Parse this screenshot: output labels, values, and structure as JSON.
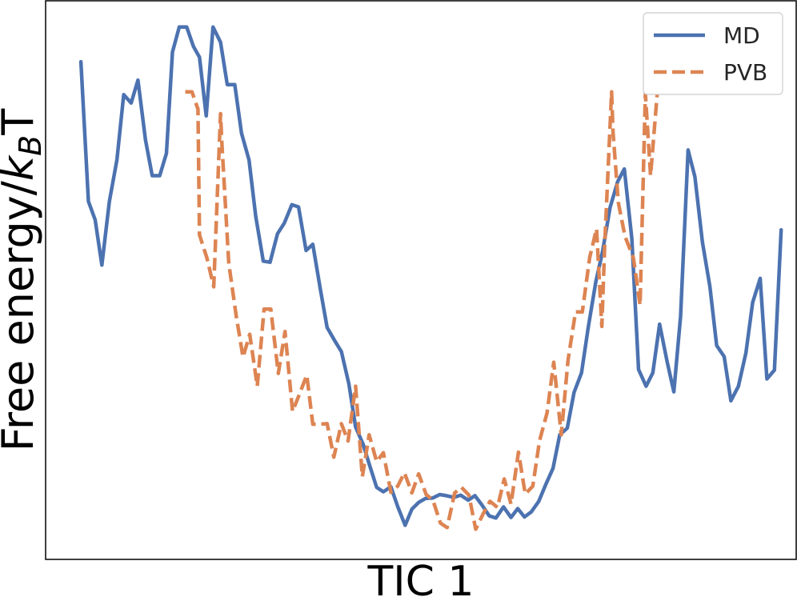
{
  "chart_data": {
    "type": "line",
    "xlabel": "TIC 1",
    "ylabel": "Free energy/kBT",
    "ylabel_parts": {
      "prefix": "Free energy/",
      "italic": "k",
      "subscript": "B",
      "suffix": "T"
    },
    "xticks": [],
    "yticks": [],
    "grid": false,
    "legend_position": "top-right",
    "xlim": [
      0,
      100
    ],
    "ylim": [
      0,
      100
    ],
    "series": [
      {
        "name": "MD",
        "color": "#4c72b0",
        "dash": "solid",
        "points": [
          [
            4.7,
            89.1
          ],
          [
            5.7,
            64.1
          ],
          [
            6.6,
            60.8
          ],
          [
            7.5,
            52.7
          ],
          [
            8.5,
            64.1
          ],
          [
            9.5,
            71.5
          ],
          [
            10.4,
            83.2
          ],
          [
            11.4,
            81.7
          ],
          [
            12.3,
            85.8
          ],
          [
            13.3,
            75.1
          ],
          [
            14.2,
            68.7
          ],
          [
            15.2,
            68.7
          ],
          [
            16.1,
            72.7
          ],
          [
            16.9,
            90.8
          ],
          [
            17.8,
            95.3
          ],
          [
            18.8,
            95.3
          ],
          [
            19.7,
            91.8
          ],
          [
            20.5,
            89.9
          ],
          [
            21.4,
            79.4
          ],
          [
            22.3,
            95.3
          ],
          [
            23.3,
            92.6
          ],
          [
            24.2,
            85.0
          ],
          [
            25.2,
            85.0
          ],
          [
            26.1,
            76.3
          ],
          [
            27.1,
            71.5
          ],
          [
            28.0,
            61.4
          ],
          [
            29.0,
            53.4
          ],
          [
            29.9,
            53.2
          ],
          [
            30.9,
            58.3
          ],
          [
            31.8,
            60.2
          ],
          [
            32.8,
            63.5
          ],
          [
            33.7,
            63.1
          ],
          [
            34.7,
            55.3
          ],
          [
            35.6,
            56.4
          ],
          [
            36.6,
            48.4
          ],
          [
            37.5,
            41.5
          ],
          [
            38.5,
            39.2
          ],
          [
            39.4,
            37.2
          ],
          [
            40.4,
            31.4
          ],
          [
            41.3,
            23.7
          ],
          [
            42.3,
            20.6
          ],
          [
            43.2,
            16.7
          ],
          [
            44.1,
            12.9
          ],
          [
            45.0,
            12.1
          ],
          [
            46.0,
            13.0
          ],
          [
            46.9,
            9.5
          ],
          [
            47.9,
            6.1
          ],
          [
            48.8,
            9.0
          ],
          [
            49.7,
            10.2
          ],
          [
            50.6,
            10.9
          ],
          [
            51.6,
            11.0
          ],
          [
            52.5,
            11.6
          ],
          [
            53.4,
            11.4
          ],
          [
            54.4,
            11.1
          ],
          [
            55.3,
            11.5
          ],
          [
            56.3,
            10.6
          ],
          [
            57.2,
            11.4
          ],
          [
            58.1,
            9.8
          ],
          [
            59.1,
            7.8
          ],
          [
            60.0,
            7.4
          ],
          [
            61.0,
            9.4
          ],
          [
            62.0,
            7.5
          ],
          [
            62.9,
            9.1
          ],
          [
            63.8,
            7.6
          ],
          [
            64.7,
            8.5
          ],
          [
            65.7,
            10.4
          ],
          [
            66.6,
            13.3
          ],
          [
            67.6,
            16.3
          ],
          [
            68.5,
            22.3
          ],
          [
            69.5,
            23.5
          ],
          [
            70.4,
            29.9
          ],
          [
            71.4,
            33.4
          ],
          [
            72.3,
            41.6
          ],
          [
            73.3,
            49.7
          ],
          [
            74.2,
            55.1
          ],
          [
            75.2,
            63.0
          ],
          [
            76.2,
            67.6
          ],
          [
            77.1,
            69.9
          ],
          [
            78.1,
            57.4
          ],
          [
            79.0,
            34.0
          ],
          [
            80.0,
            31.0
          ],
          [
            80.9,
            33.4
          ],
          [
            81.8,
            42.1
          ],
          [
            82.8,
            35.4
          ],
          [
            83.7,
            30.0
          ],
          [
            84.6,
            43.5
          ],
          [
            85.6,
            73.3
          ],
          [
            86.5,
            68.5
          ],
          [
            87.5,
            56.8
          ],
          [
            88.5,
            48.9
          ],
          [
            89.4,
            38.3
          ],
          [
            90.4,
            36.3
          ],
          [
            91.3,
            28.4
          ],
          [
            92.3,
            31.0
          ],
          [
            93.3,
            37.0
          ],
          [
            94.2,
            46.0
          ],
          [
            95.2,
            50.3
          ],
          [
            96.1,
            32.3
          ],
          [
            97.1,
            33.9
          ],
          [
            98.0,
            59.0
          ]
        ]
      },
      {
        "name": "PVB",
        "color": "#dd8452",
        "dash": "dashed",
        "points": [
          [
            18.6,
            83.7
          ],
          [
            19.5,
            83.7
          ],
          [
            20.3,
            80.6
          ],
          [
            20.5,
            58.1
          ],
          [
            21.5,
            53.9
          ],
          [
            22.4,
            48.8
          ],
          [
            23.3,
            79.8
          ],
          [
            23.5,
            74.2
          ],
          [
            24.4,
            53.0
          ],
          [
            25.4,
            43.5
          ],
          [
            26.3,
            36.2
          ],
          [
            27.2,
            40.3
          ],
          [
            28.2,
            31.0
          ],
          [
            29.1,
            44.8
          ],
          [
            30.0,
            44.8
          ],
          [
            31.0,
            33.3
          ],
          [
            31.9,
            40.8
          ],
          [
            32.9,
            26.5
          ],
          [
            33.8,
            29.5
          ],
          [
            34.8,
            33.0
          ],
          [
            35.6,
            24.2
          ],
          [
            36.5,
            24.2
          ],
          [
            37.5,
            24.3
          ],
          [
            38.4,
            18.3
          ],
          [
            39.4,
            24.3
          ],
          [
            40.3,
            21.2
          ],
          [
            41.3,
            31.0
          ],
          [
            42.2,
            14.8
          ],
          [
            43.1,
            22.3
          ],
          [
            44.1,
            17.5
          ],
          [
            45.0,
            19.1
          ],
          [
            46.0,
            12.0
          ],
          [
            46.9,
            13.1
          ],
          [
            47.8,
            15.5
          ],
          [
            48.8,
            11.9
          ],
          [
            49.7,
            15.3
          ],
          [
            50.7,
            11.6
          ],
          [
            51.6,
            10.6
          ],
          [
            52.6,
            6.5
          ],
          [
            53.5,
            5.7
          ],
          [
            54.5,
            11.9
          ],
          [
            55.4,
            12.9
          ],
          [
            56.4,
            11.5
          ],
          [
            57.3,
            5.4
          ],
          [
            58.3,
            8.2
          ],
          [
            59.2,
            10.4
          ],
          [
            60.2,
            9.3
          ],
          [
            61.1,
            14.4
          ],
          [
            62.0,
            9.9
          ],
          [
            63.0,
            19.2
          ],
          [
            63.9,
            11.7
          ],
          [
            64.9,
            13.1
          ],
          [
            65.8,
            21.2
          ],
          [
            66.8,
            26.2
          ],
          [
            67.7,
            35.3
          ],
          [
            68.7,
            22.3
          ],
          [
            69.6,
            35.6
          ],
          [
            70.6,
            44.3
          ],
          [
            71.5,
            44.3
          ],
          [
            72.5,
            54.1
          ],
          [
            73.4,
            59.2
          ],
          [
            74.1,
            41.7
          ],
          [
            74.5,
            56.7
          ],
          [
            75.4,
            83.7
          ],
          [
            75.6,
            76.5
          ],
          [
            76.3,
            63.9
          ],
          [
            77.2,
            57.8
          ],
          [
            78.3,
            54.0
          ],
          [
            79.2,
            45.5
          ],
          [
            79.9,
            83.4
          ],
          [
            80.6,
            68.7
          ],
          [
            81.5,
            83.7
          ]
        ]
      }
    ]
  }
}
